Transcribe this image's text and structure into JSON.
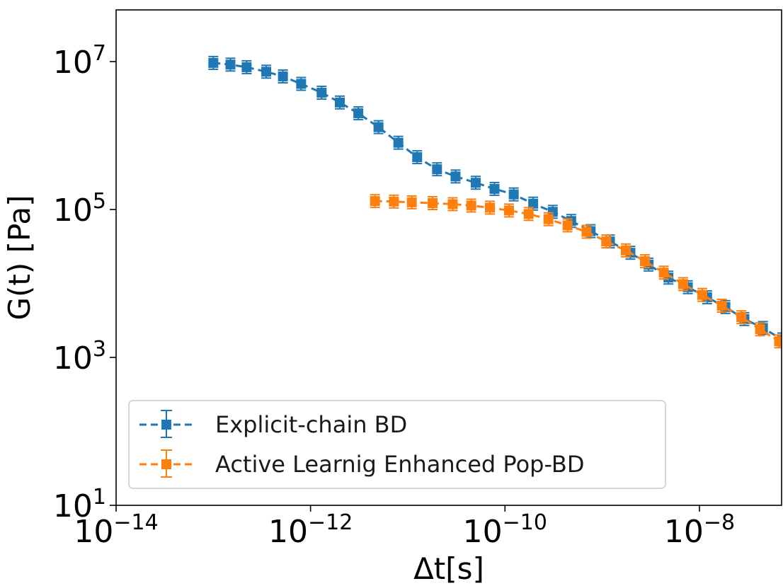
{
  "chart_data": {
    "type": "line",
    "title": "",
    "xlabel": "Δt[s]",
    "ylabel": "G(t) [Pa]",
    "xscale": "log",
    "yscale": "log",
    "xlim": [
      1e-14,
      7e-08
    ],
    "ylim": [
      10,
      50000000.0
    ],
    "x_ticks": [
      {
        "base": "10",
        "exp": "−14",
        "value": 1e-14
      },
      {
        "base": "10",
        "exp": "−12",
        "value": 1e-12
      },
      {
        "base": "10",
        "exp": "−10",
        "value": 1e-10
      },
      {
        "base": "10",
        "exp": "−8",
        "value": 1e-08
      }
    ],
    "y_ticks": [
      {
        "base": "10",
        "exp": "1",
        "value": 10
      },
      {
        "base": "10",
        "exp": "3",
        "value": 1000
      },
      {
        "base": "10",
        "exp": "5",
        "value": 100000
      },
      {
        "base": "10",
        "exp": "7",
        "value": 10000000
      }
    ],
    "grid": false,
    "legend_position": "lower-left",
    "series": [
      {
        "name": "Explicit-chain BD",
        "color": "#1f77b4",
        "marker": "square",
        "linestyle": "dashed",
        "points": [
          [
            1e-13,
            9600000.0
          ],
          [
            1.5e-13,
            9100000.0
          ],
          [
            2.2e-13,
            8400000.0
          ],
          [
            3.5e-13,
            7300000.0
          ],
          [
            5.2e-13,
            6300000.0
          ],
          [
            8e-13,
            5000000.0
          ],
          [
            1.3e-12,
            3800000.0
          ],
          [
            2e-12,
            2800000.0
          ],
          [
            3.1e-12,
            2000000.0
          ],
          [
            5e-12,
            1300000.0
          ],
          [
            8e-12,
            800000.0
          ],
          [
            1.25e-11,
            510000.0
          ],
          [
            2e-11,
            350000.0
          ],
          [
            3.1e-11,
            280000.0
          ],
          [
            5e-11,
            230000.0
          ],
          [
            7.8e-11,
            190000.0
          ],
          [
            1.23e-10,
            160000.0
          ],
          [
            1.95e-10,
            120000.0
          ],
          [
            3.1e-10,
            93000.0
          ],
          [
            4.8e-10,
            70000.0
          ],
          [
            7.6e-10,
            51000.0
          ],
          [
            1.2e-09,
            37000.0
          ],
          [
            1.95e-09,
            26000.0
          ],
          [
            3e-09,
            18000.0
          ],
          [
            4.8e-09,
            12000.0
          ],
          [
            7.6e-09,
            8900.0
          ],
          [
            1.2e-08,
            6500.0
          ],
          [
            1.85e-08,
            4800.0
          ],
          [
            2.9e-08,
            3300.0
          ],
          [
            4.5e-08,
            2500.0
          ],
          [
            7.1e-08,
            1750.0
          ]
        ]
      },
      {
        "name": "Active Learnig Enhanced Pop-BD",
        "color": "#ff7f0e",
        "marker": "square",
        "linestyle": "dashed",
        "points": [
          [
            4.6e-12,
            130000.0
          ],
          [
            7.2e-12,
            128000.0
          ],
          [
            1.1e-11,
            125000.0
          ],
          [
            1.8e-11,
            122000.0
          ],
          [
            2.9e-11,
            118000.0
          ],
          [
            4.5e-11,
            113000.0
          ],
          [
            7e-11,
            106000.0
          ],
          [
            1.1e-10,
            97000.0
          ],
          [
            1.75e-10,
            87000.0
          ],
          [
            2.8e-10,
            74000.0
          ],
          [
            4.4e-10,
            61000.0
          ],
          [
            6.9e-10,
            50000.0
          ],
          [
            1.1e-09,
            37000.0
          ],
          [
            1.75e-09,
            28000.0
          ],
          [
            2.75e-09,
            20000.0
          ],
          [
            4.3e-09,
            14000.0
          ],
          [
            6.8e-09,
            9800.0
          ],
          [
            1.07e-08,
            7000.0
          ],
          [
            1.7e-08,
            5000.0
          ],
          [
            2.7e-08,
            3500.0
          ],
          [
            4.2e-08,
            2400.0
          ],
          [
            6.6e-08,
            1650.0
          ]
        ]
      }
    ]
  }
}
